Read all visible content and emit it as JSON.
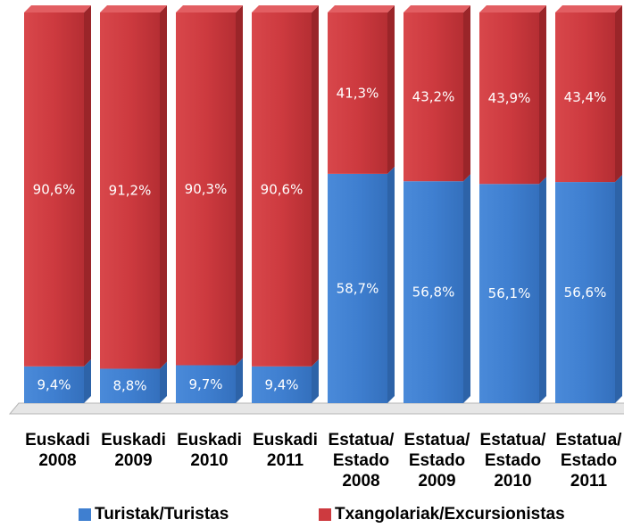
{
  "chart_data": {
    "type": "bar",
    "stacked": true,
    "percent": true,
    "ylim": [
      0,
      100
    ],
    "categories": [
      [
        "Euskadi",
        "2008"
      ],
      [
        "Euskadi",
        "2009"
      ],
      [
        "Euskadi",
        "2010"
      ],
      [
        "Euskadi",
        "2011"
      ],
      [
        "Estatua/",
        "Estado",
        "2008"
      ],
      [
        "Estatua/",
        "Estado",
        "2009"
      ],
      [
        "Estatua/",
        "Estado",
        "2010"
      ],
      [
        "Estatua/",
        "Estado",
        "2011"
      ]
    ],
    "series": [
      {
        "name": "Turistak/Turistas",
        "color": "#3f7fd0",
        "values": [
          9.4,
          8.8,
          9.7,
          9.4,
          58.7,
          56.8,
          56.1,
          56.6
        ],
        "labels": [
          "9,4%",
          "8,8%",
          "9,7%",
          "9,4%",
          "58,7%",
          "56,8%",
          "56,1%",
          "56,6%"
        ]
      },
      {
        "name": "Txangolariak/Excursionistas",
        "color": "#cd3a3f",
        "values": [
          90.6,
          91.2,
          90.3,
          90.6,
          41.3,
          43.2,
          43.9,
          43.4
        ],
        "labels": [
          "90,6%",
          "91,2%",
          "90,3%",
          "90,6%",
          "41,3%",
          "43,2%",
          "43,9%",
          "43,4%"
        ]
      }
    ],
    "legend": "bottom",
    "grid": false
  }
}
